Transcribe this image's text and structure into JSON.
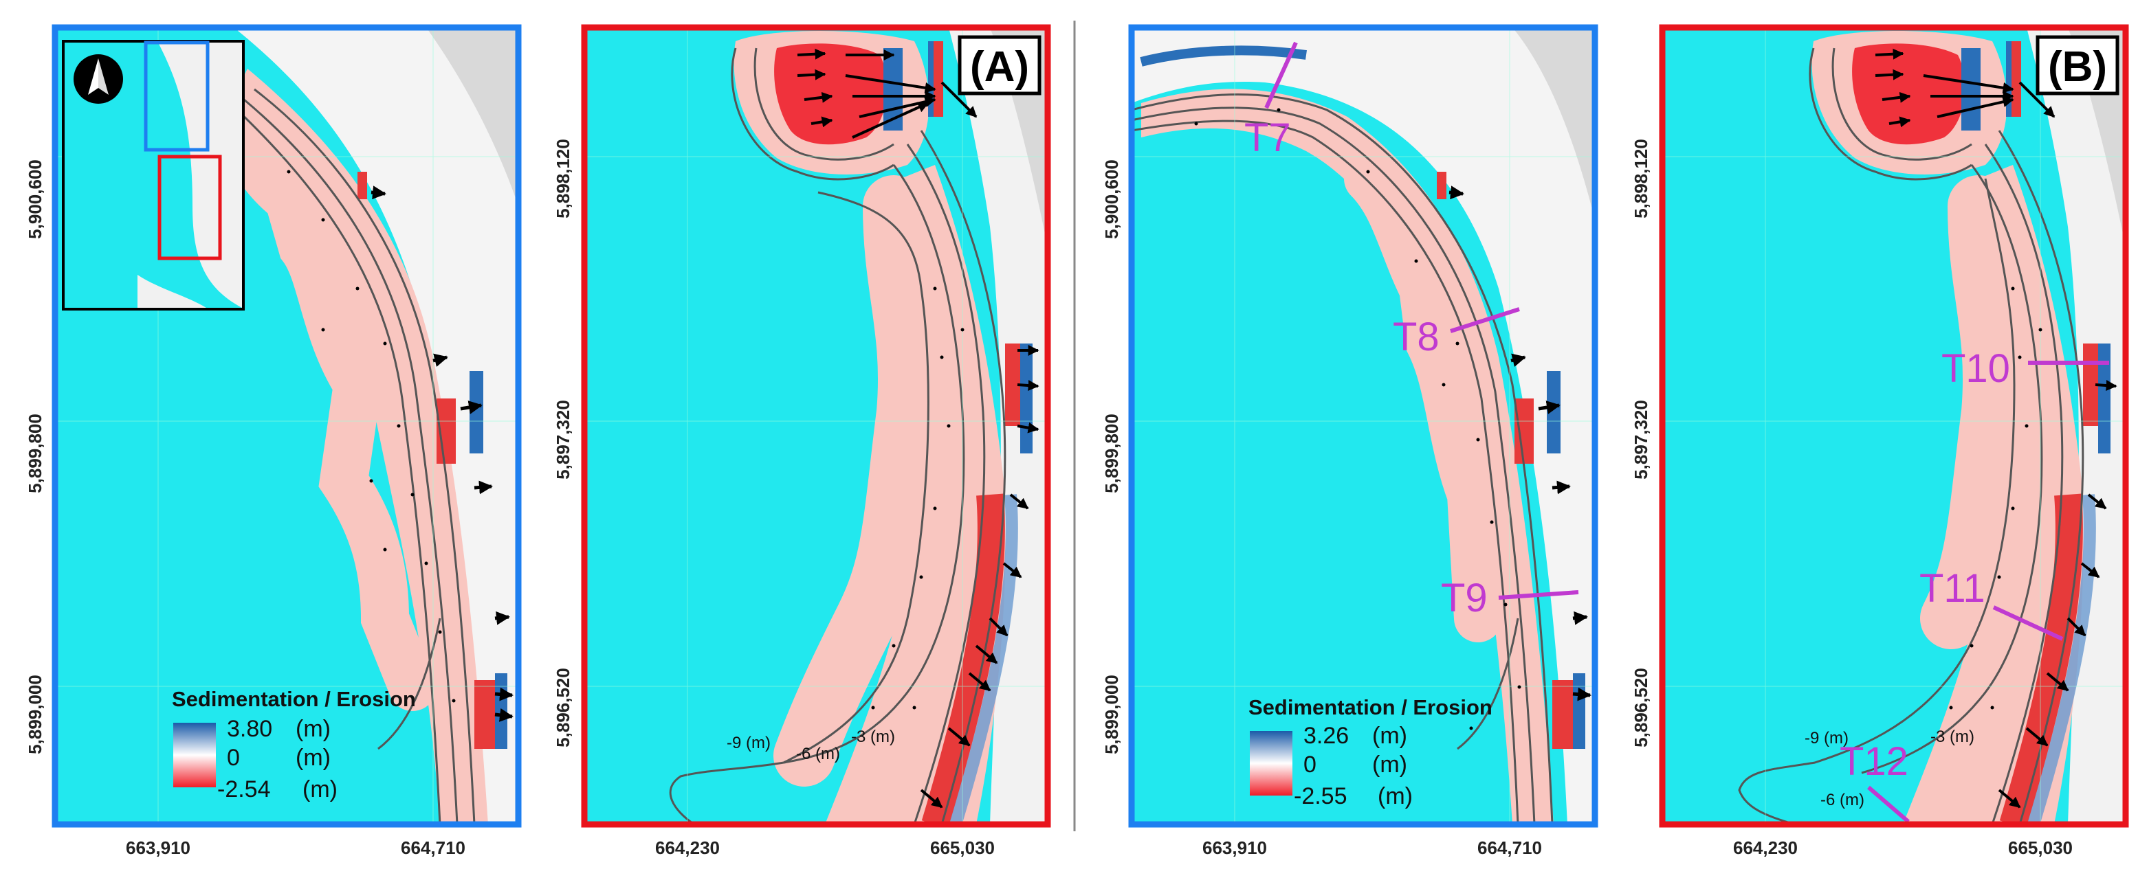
{
  "panels": [
    {
      "id": "panel-1",
      "frame_color": "#1e7ff0",
      "y_ticks": [
        "5,900,600",
        "5,899,800",
        "5,899,000"
      ],
      "x_ticks": [
        "663,910",
        "664,710"
      ],
      "legend": {
        "title": "Sedimentation / Erosion",
        "values": [
          "3.80",
          "0",
          "-2.54"
        ],
        "unit": "(m)"
      }
    },
    {
      "id": "panel-2",
      "frame_color": "#e8141c",
      "label": "(A)",
      "y_ticks": [
        "5,898,120",
        "5,897,320",
        "5,896,520"
      ],
      "x_ticks": [
        "664,230",
        "665,030"
      ],
      "contours": [
        "-9 (m)",
        "-6 (m)",
        "-3 (m)"
      ]
    },
    {
      "id": "panel-3",
      "frame_color": "#1e7ff0",
      "y_ticks": [
        "5,900,600",
        "5,899,800",
        "5,899,000"
      ],
      "x_ticks": [
        "663,910",
        "664,710"
      ],
      "transects": [
        "T7",
        "T8",
        "T9"
      ],
      "legend": {
        "title": "Sedimentation / Erosion",
        "values": [
          "3.26",
          "0",
          "-2.55"
        ],
        "unit": "(m)"
      }
    },
    {
      "id": "panel-4",
      "frame_color": "#e8141c",
      "label": "(B)",
      "y_ticks": [
        "5,898,120",
        "5,897,320",
        "5,896,520"
      ],
      "x_ticks": [
        "664,230",
        "665,030"
      ],
      "contours": [
        "-9 (m)",
        "-6 (m)",
        "-3 (m)"
      ],
      "transects": [
        "T10",
        "T11",
        "T12"
      ]
    }
  ],
  "colors": {
    "water": "#22e8ee",
    "erosion": "#f5434a",
    "erosion_light": "#f9c6c0",
    "sedimentation": "#2a6fb8",
    "inset_blue": "#1e7ff0",
    "inset_red": "#e8141c",
    "transect": "#c03ad0"
  },
  "icons": {
    "north": "north-arrow-icon"
  }
}
